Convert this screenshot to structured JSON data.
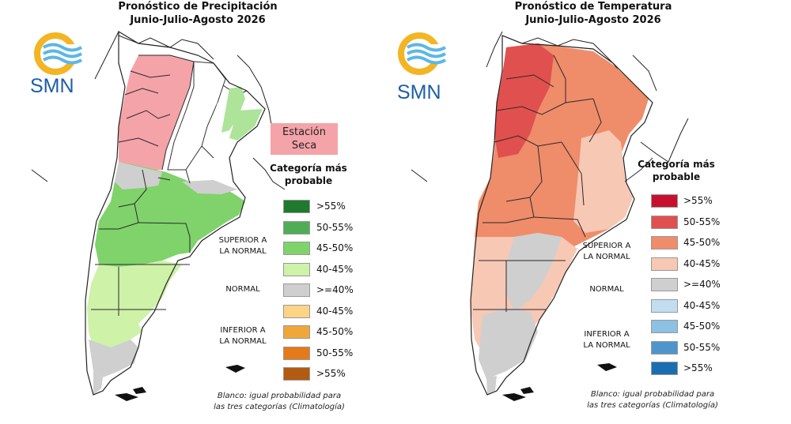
{
  "precipitation": {
    "title_line1": "Pronóstico de Precipitación",
    "title_line2": "Junio-Julio-Agosto 2026",
    "logo_text": "SMN",
    "dry_line1": "Estación",
    "dry_line2": "Seca",
    "legend_title_line1": "Categoría más",
    "legend_title_line2": "probable",
    "group_superior_line1": "SUPERIOR A",
    "group_superior_line2": "LA NORMAL",
    "group_normal": "NORMAL",
    "group_inferior_line1": "INFERIOR A",
    "group_inferior_line2": "LA NORMAL",
    "legend": [
      {
        "label": ">55%",
        "color": "#1f7a2e"
      },
      {
        "label": "50-55%",
        "color": "#4fae55"
      },
      {
        "label": "45-50%",
        "color": "#7fd36a"
      },
      {
        "label": "40-45%",
        "color": "#cdf2a8"
      },
      {
        "label": ">=40%",
        "color": "#cfcfcf"
      },
      {
        "label": "40-45%",
        "color": "#fcd486"
      },
      {
        "label": "45-50%",
        "color": "#f0a73a"
      },
      {
        "label": "50-55%",
        "color": "#e57a1a"
      },
      {
        "label": ">55%",
        "color": "#b35a13"
      }
    ],
    "note_line1": "Blanco: igual probabilidad para",
    "note_line2": "las tres categorías (Climatología)"
  },
  "temperature": {
    "title_line1": "Pronóstico de Temperatura",
    "title_line2": "Junio-Julio-Agosto 2026",
    "logo_text": "SMN",
    "legend_title_line1": "Categoría más",
    "legend_title_line2": "probable",
    "group_superior_line1": "SUPERIOR A",
    "group_superior_line2": "LA NORMAL",
    "group_normal": "NORMAL",
    "group_inferior_line1": "INFERIOR A",
    "group_inferior_line2": "LA NORMAL",
    "legend": [
      {
        "label": ">55%",
        "color": "#c8102e"
      },
      {
        "label": "50-55%",
        "color": "#e0504e"
      },
      {
        "label": "45-50%",
        "color": "#ef8c6a"
      },
      {
        "label": "40-45%",
        "color": "#f7c8b4"
      },
      {
        "label": ">=40%",
        "color": "#cfcfcf"
      },
      {
        "label": "40-45%",
        "color": "#c2ddef"
      },
      {
        "label": "45-50%",
        "color": "#8cc1e3"
      },
      {
        "label": "50-55%",
        "color": "#4f95cc"
      },
      {
        "label": ">55%",
        "color": "#1b6fb0"
      }
    ],
    "note_line1": "Blanco: igual probabilidad para",
    "note_line2": "las tres categorías (Climatología)"
  }
}
